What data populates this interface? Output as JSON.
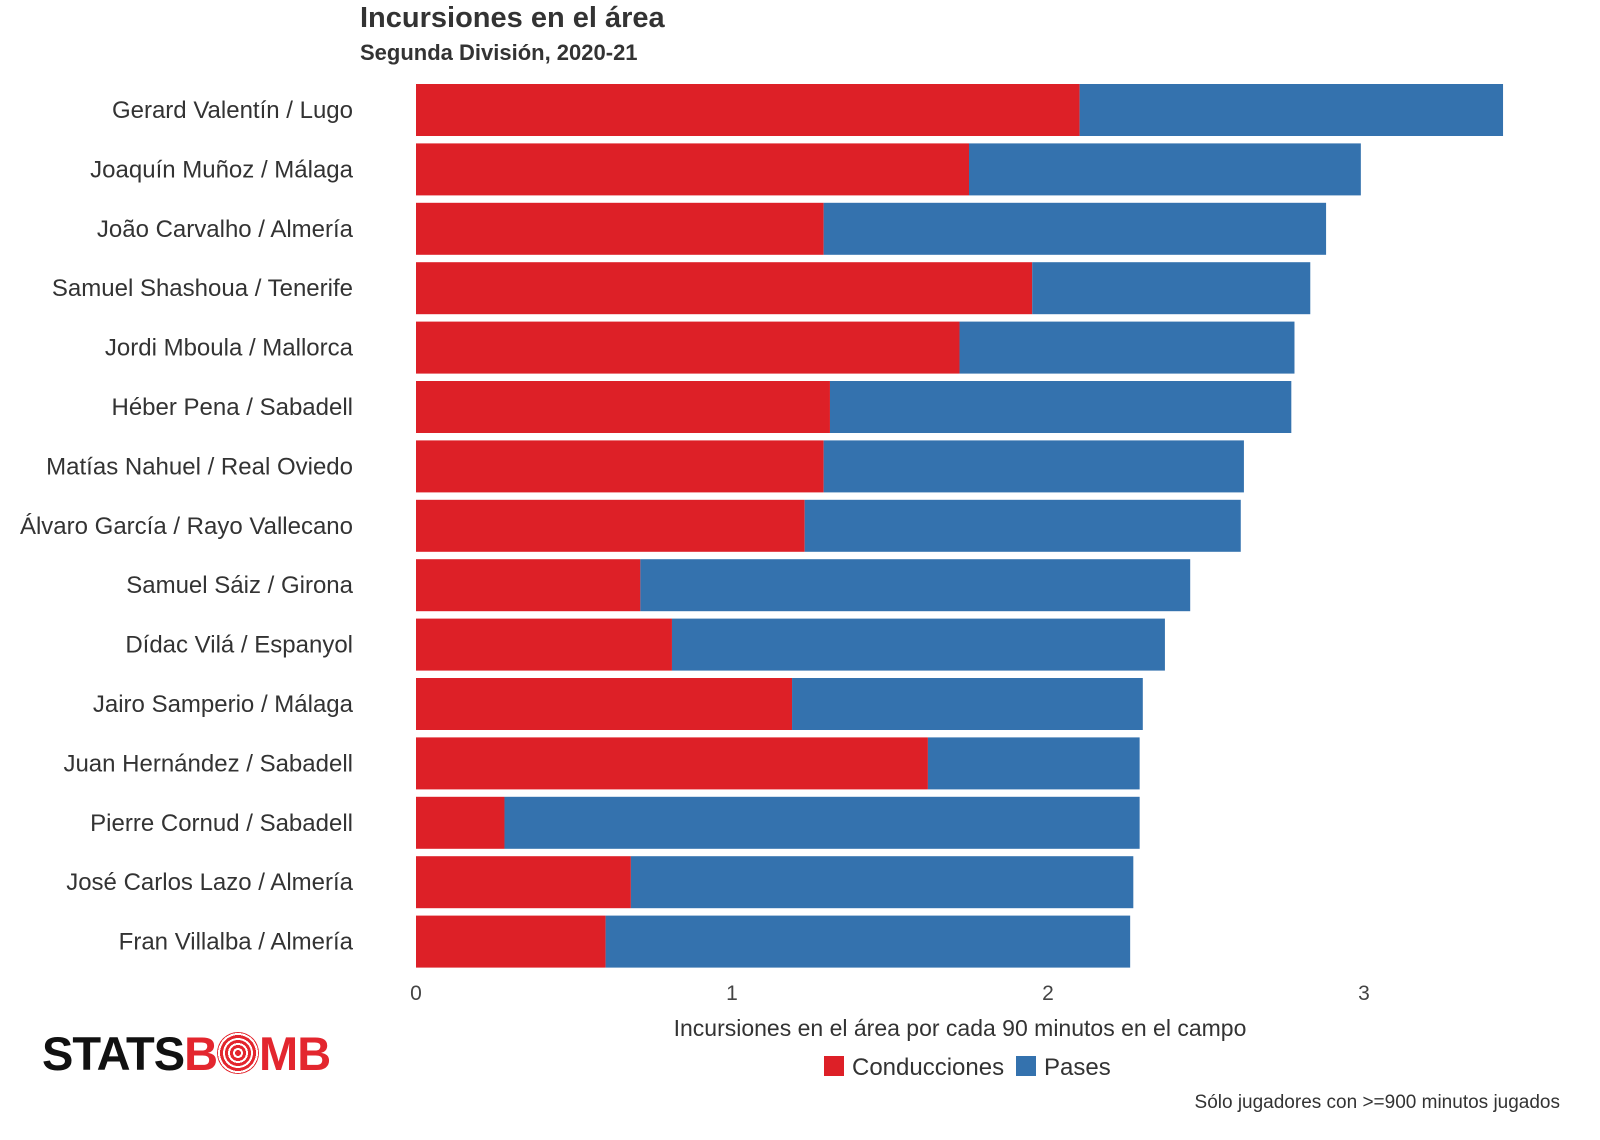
{
  "title": "Incursiones en el área",
  "subtitle": "Segunda División, 2020-21",
  "caption": "Sólo jugadores con >=900 minutos jugados",
  "logo": {
    "left": "STATS",
    "right_a": "B",
    "right_b": "MB"
  },
  "colors": {
    "conducciones": "#dd2027",
    "pases": "#3472ae"
  },
  "chart_data": {
    "type": "bar",
    "orientation": "horizontal",
    "stacked": true,
    "categories": [
      "Gerard Valentín / Lugo",
      "Joaquín Muñoz / Málaga",
      "João Carvalho / Almería",
      "Samuel Shashoua / Tenerife",
      "Jordi Mboula / Mallorca",
      "Héber Pena / Sabadell",
      "Matías Nahuel / Real Oviedo",
      "Álvaro García / Rayo Vallecano",
      "Samuel Sáiz / Girona",
      "Dídac Vilá / Espanyol",
      "Jairo Samperio / Málaga",
      "Juan Hernández / Sabadell",
      "Pierre Cornud / Sabadell",
      "José Carlos Lazo / Almería",
      "Fran Villalba / Almería"
    ],
    "series": [
      {
        "name": "Conducciones",
        "values": [
          2.1,
          1.75,
          1.29,
          1.95,
          1.72,
          1.31,
          1.29,
          1.23,
          0.71,
          0.81,
          1.19,
          1.62,
          0.28,
          0.68,
          0.6
        ]
      },
      {
        "name": "Pases",
        "values": [
          1.34,
          1.24,
          1.59,
          0.88,
          1.06,
          1.46,
          1.33,
          1.38,
          1.74,
          1.56,
          1.11,
          0.67,
          2.01,
          1.59,
          1.66
        ]
      }
    ],
    "xlabel": "Incursiones en el área por cada 90 minutos en el campo",
    "ylabel": "",
    "xticks": [
      0,
      1,
      2,
      3
    ],
    "xlim": [
      0,
      3.5
    ],
    "grid": false,
    "legend_position": "bottom"
  }
}
